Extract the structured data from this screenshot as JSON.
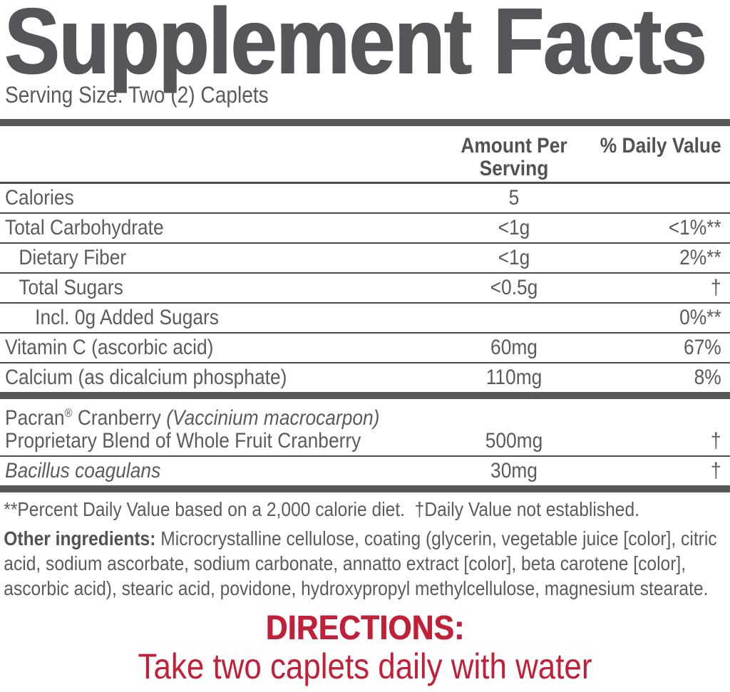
{
  "title": "Supplement Facts",
  "serving_size": "Serving Size: Two (2) Caplets",
  "table": {
    "headers": {
      "amount": "Amount Per Serving",
      "dv": "% Daily Value"
    },
    "rows": [
      {
        "name": "Calories",
        "amount": "5",
        "dv": ""
      },
      {
        "name": "Total Carbohydrate",
        "amount": "<1g",
        "dv": "<1%**"
      },
      {
        "name": "Dietary Fiber",
        "amount": "<1g",
        "dv": "2%**"
      },
      {
        "name": "Total Sugars",
        "amount": "<0.5g",
        "dv": "†"
      },
      {
        "name": "Incl. 0g Added Sugars",
        "amount": "",
        "dv": "0%**"
      },
      {
        "name": "Vitamin C (ascorbic acid)",
        "amount": "60mg",
        "dv": "67%"
      },
      {
        "name": "Calcium (as dicalcium phosphate)",
        "amount": "110mg",
        "dv": "8%"
      },
      {
        "name_brand": "Pacran",
        "name_reg": "®",
        "name_mid": " Cranberry ",
        "name_latin": "(Vaccinium macrocarpon)",
        "name_line2": "Proprietary Blend of Whole Fruit Cranberry",
        "amount": "500mg",
        "dv": "†"
      },
      {
        "name": "Bacillus coagulans",
        "amount": "30mg",
        "dv": "†"
      }
    ]
  },
  "footnote": "**Percent Daily Value based on a 2,000 calorie diet.  †Daily Value not established.",
  "other_ingredients": {
    "label": "Other ingredients:",
    "text": "Microcrystalline cellulose, coating (glycerin, vegetable juice [color], citric acid, sodium ascorbate, sodium carbonate, annatto extract [color], beta carotene [color], ascorbic acid), stearic acid, povidone, hydroxypropyl methylcellulose, magnesium stearate."
  },
  "directions": {
    "heading": "DIRECTIONS:",
    "text": "Take two caplets daily with water"
  },
  "colors": {
    "text_gray": "#58595b",
    "rule_gray": "#4b4c4e",
    "accent_red": "#c22038"
  }
}
